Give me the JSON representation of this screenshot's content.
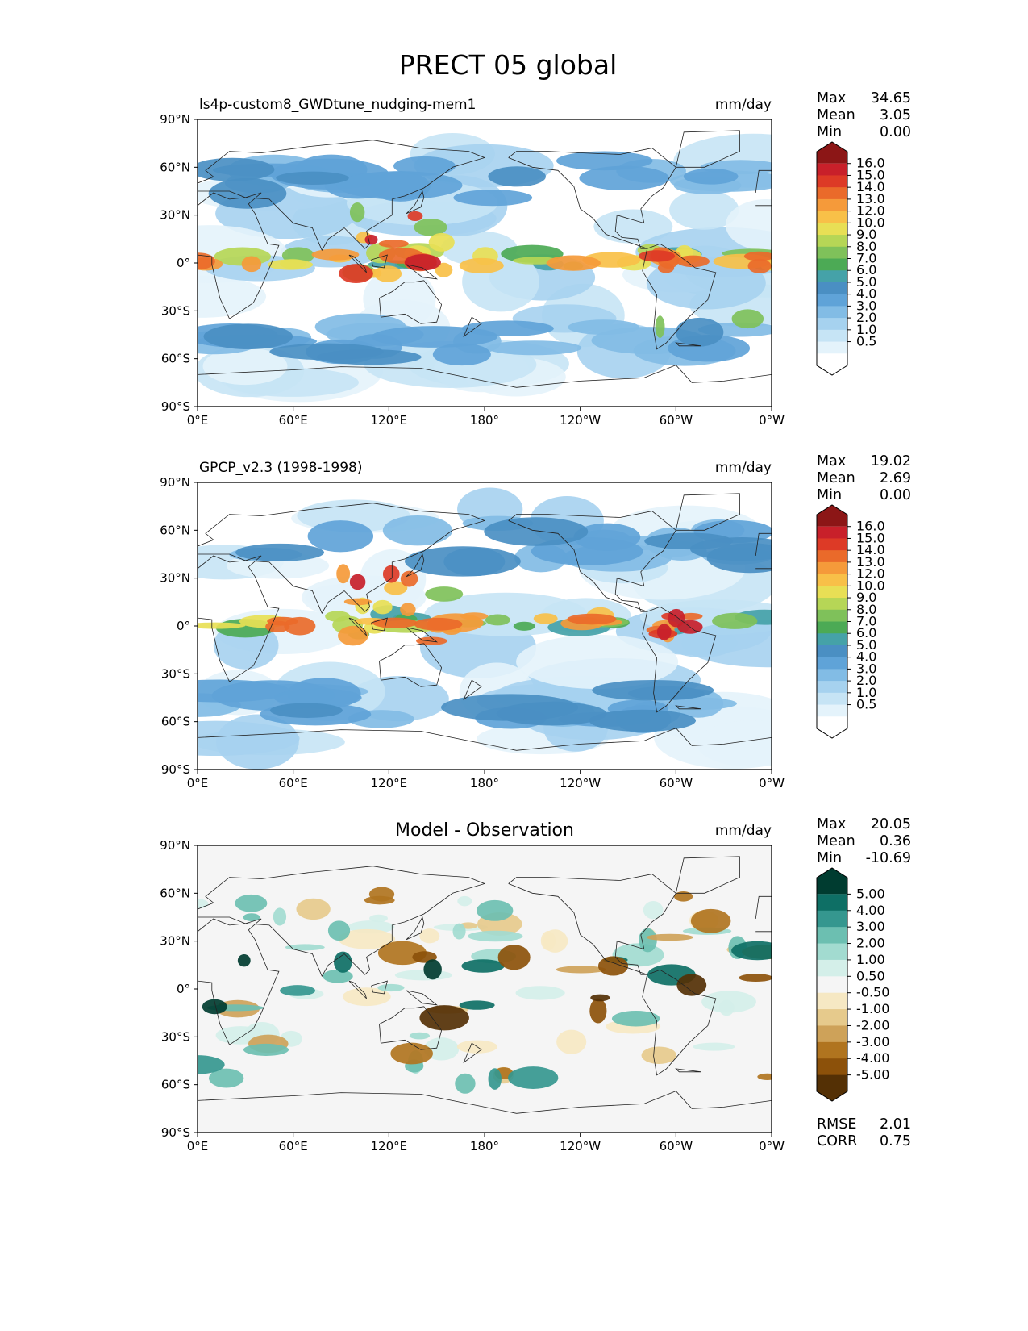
{
  "title": "PRECT 05 global",
  "chart_data": [
    {
      "type": "heatmap",
      "panel_title": "ls4p-custom8_GWDtune_nudging-mem1",
      "units": "mm/day",
      "stats": [
        {
          "label": "Max",
          "value": "34.65"
        },
        {
          "label": "Mean",
          "value": "3.05"
        },
        {
          "label": "Min",
          "value": "0.00"
        }
      ],
      "xticks": [
        "0°E",
        "60°E",
        "120°E",
        "180°",
        "120°W",
        "60°W",
        "0°W"
      ],
      "yticks": [
        "90°N",
        "60°N",
        "30°N",
        "0°",
        "30°S",
        "60°S",
        "90°S"
      ],
      "xlim": [
        0,
        360
      ],
      "ylim": [
        -90,
        90
      ],
      "colorbar": {
        "levels": [
          "16.0",
          "15.0",
          "14.0",
          "13.0",
          "12.0",
          "10.0",
          "9.0",
          "8.0",
          "7.0",
          "6.0",
          "5.0",
          "4.0",
          "3.0",
          "2.0",
          "1.0",
          "0.5"
        ],
        "colors": [
          "#ffffff",
          "#e4f3fb",
          "#c6e4f5",
          "#a6d2ef",
          "#82bce5",
          "#5fa3d8",
          "#4a8fc3",
          "#45a2a8",
          "#4caa55",
          "#7fc15a",
          "#b6d656",
          "#e8df55",
          "#f8c048",
          "#f59a3a",
          "#ea6a2a",
          "#dd3a26",
          "#c8202a",
          "#8c1616"
        ]
      }
    },
    {
      "type": "heatmap",
      "panel_title": "GPCP_v2.3 (1998-1998)",
      "units": "mm/day",
      "stats": [
        {
          "label": "Max",
          "value": "19.02"
        },
        {
          "label": "Mean",
          "value": "2.69"
        },
        {
          "label": "Min",
          "value": "0.00"
        }
      ],
      "xticks": [
        "0°E",
        "60°E",
        "120°E",
        "180°",
        "120°W",
        "60°W",
        "0°W"
      ],
      "yticks": [
        "90°N",
        "60°N",
        "30°N",
        "0°",
        "30°S",
        "60°S",
        "90°S"
      ],
      "xlim": [
        0,
        360
      ],
      "ylim": [
        -90,
        90
      ],
      "colorbar": {
        "levels": [
          "16.0",
          "15.0",
          "14.0",
          "13.0",
          "12.0",
          "10.0",
          "9.0",
          "8.0",
          "7.0",
          "6.0",
          "5.0",
          "4.0",
          "3.0",
          "2.0",
          "1.0",
          "0.5"
        ],
        "colors": [
          "#ffffff",
          "#e4f3fb",
          "#c6e4f5",
          "#a6d2ef",
          "#82bce5",
          "#5fa3d8",
          "#4a8fc3",
          "#45a2a8",
          "#4caa55",
          "#7fc15a",
          "#b6d656",
          "#e8df55",
          "#f8c048",
          "#f59a3a",
          "#ea6a2a",
          "#dd3a26",
          "#c8202a",
          "#8c1616"
        ]
      }
    },
    {
      "type": "heatmap",
      "panel_title": "Model - Observation",
      "units": "mm/day",
      "stats": [
        {
          "label": "Max",
          "value": "20.05"
        },
        {
          "label": "Mean",
          "value": "0.36"
        },
        {
          "label": "Min",
          "value": "-10.69"
        }
      ],
      "xticks": [
        "0°E",
        "60°E",
        "120°E",
        "180°",
        "120°W",
        "60°W",
        "0°W"
      ],
      "yticks": [
        "90°N",
        "60°N",
        "30°N",
        "0°",
        "30°S",
        "60°S",
        "90°S"
      ],
      "xlim": [
        0,
        360
      ],
      "ylim": [
        -90,
        90
      ],
      "colorbar": {
        "levels": [
          "5.00",
          "4.00",
          "3.00",
          "2.00",
          "1.00",
          "0.50",
          "-0.50",
          "-1.00",
          "-2.00",
          "-3.00",
          "-4.00",
          "-5.00"
        ],
        "colors": [
          "#543005",
          "#8c510a",
          "#b0741f",
          "#cea259",
          "#e6ca8c",
          "#f6e8c3",
          "#f5f5f5",
          "#d4efe9",
          "#a2dbd0",
          "#6cbfb1",
          "#35978f",
          "#0e6f65",
          "#003c30"
        ]
      },
      "error_stats": [
        {
          "label": "RMSE",
          "value": "2.01"
        },
        {
          "label": "CORR",
          "value": "0.75"
        }
      ]
    }
  ]
}
